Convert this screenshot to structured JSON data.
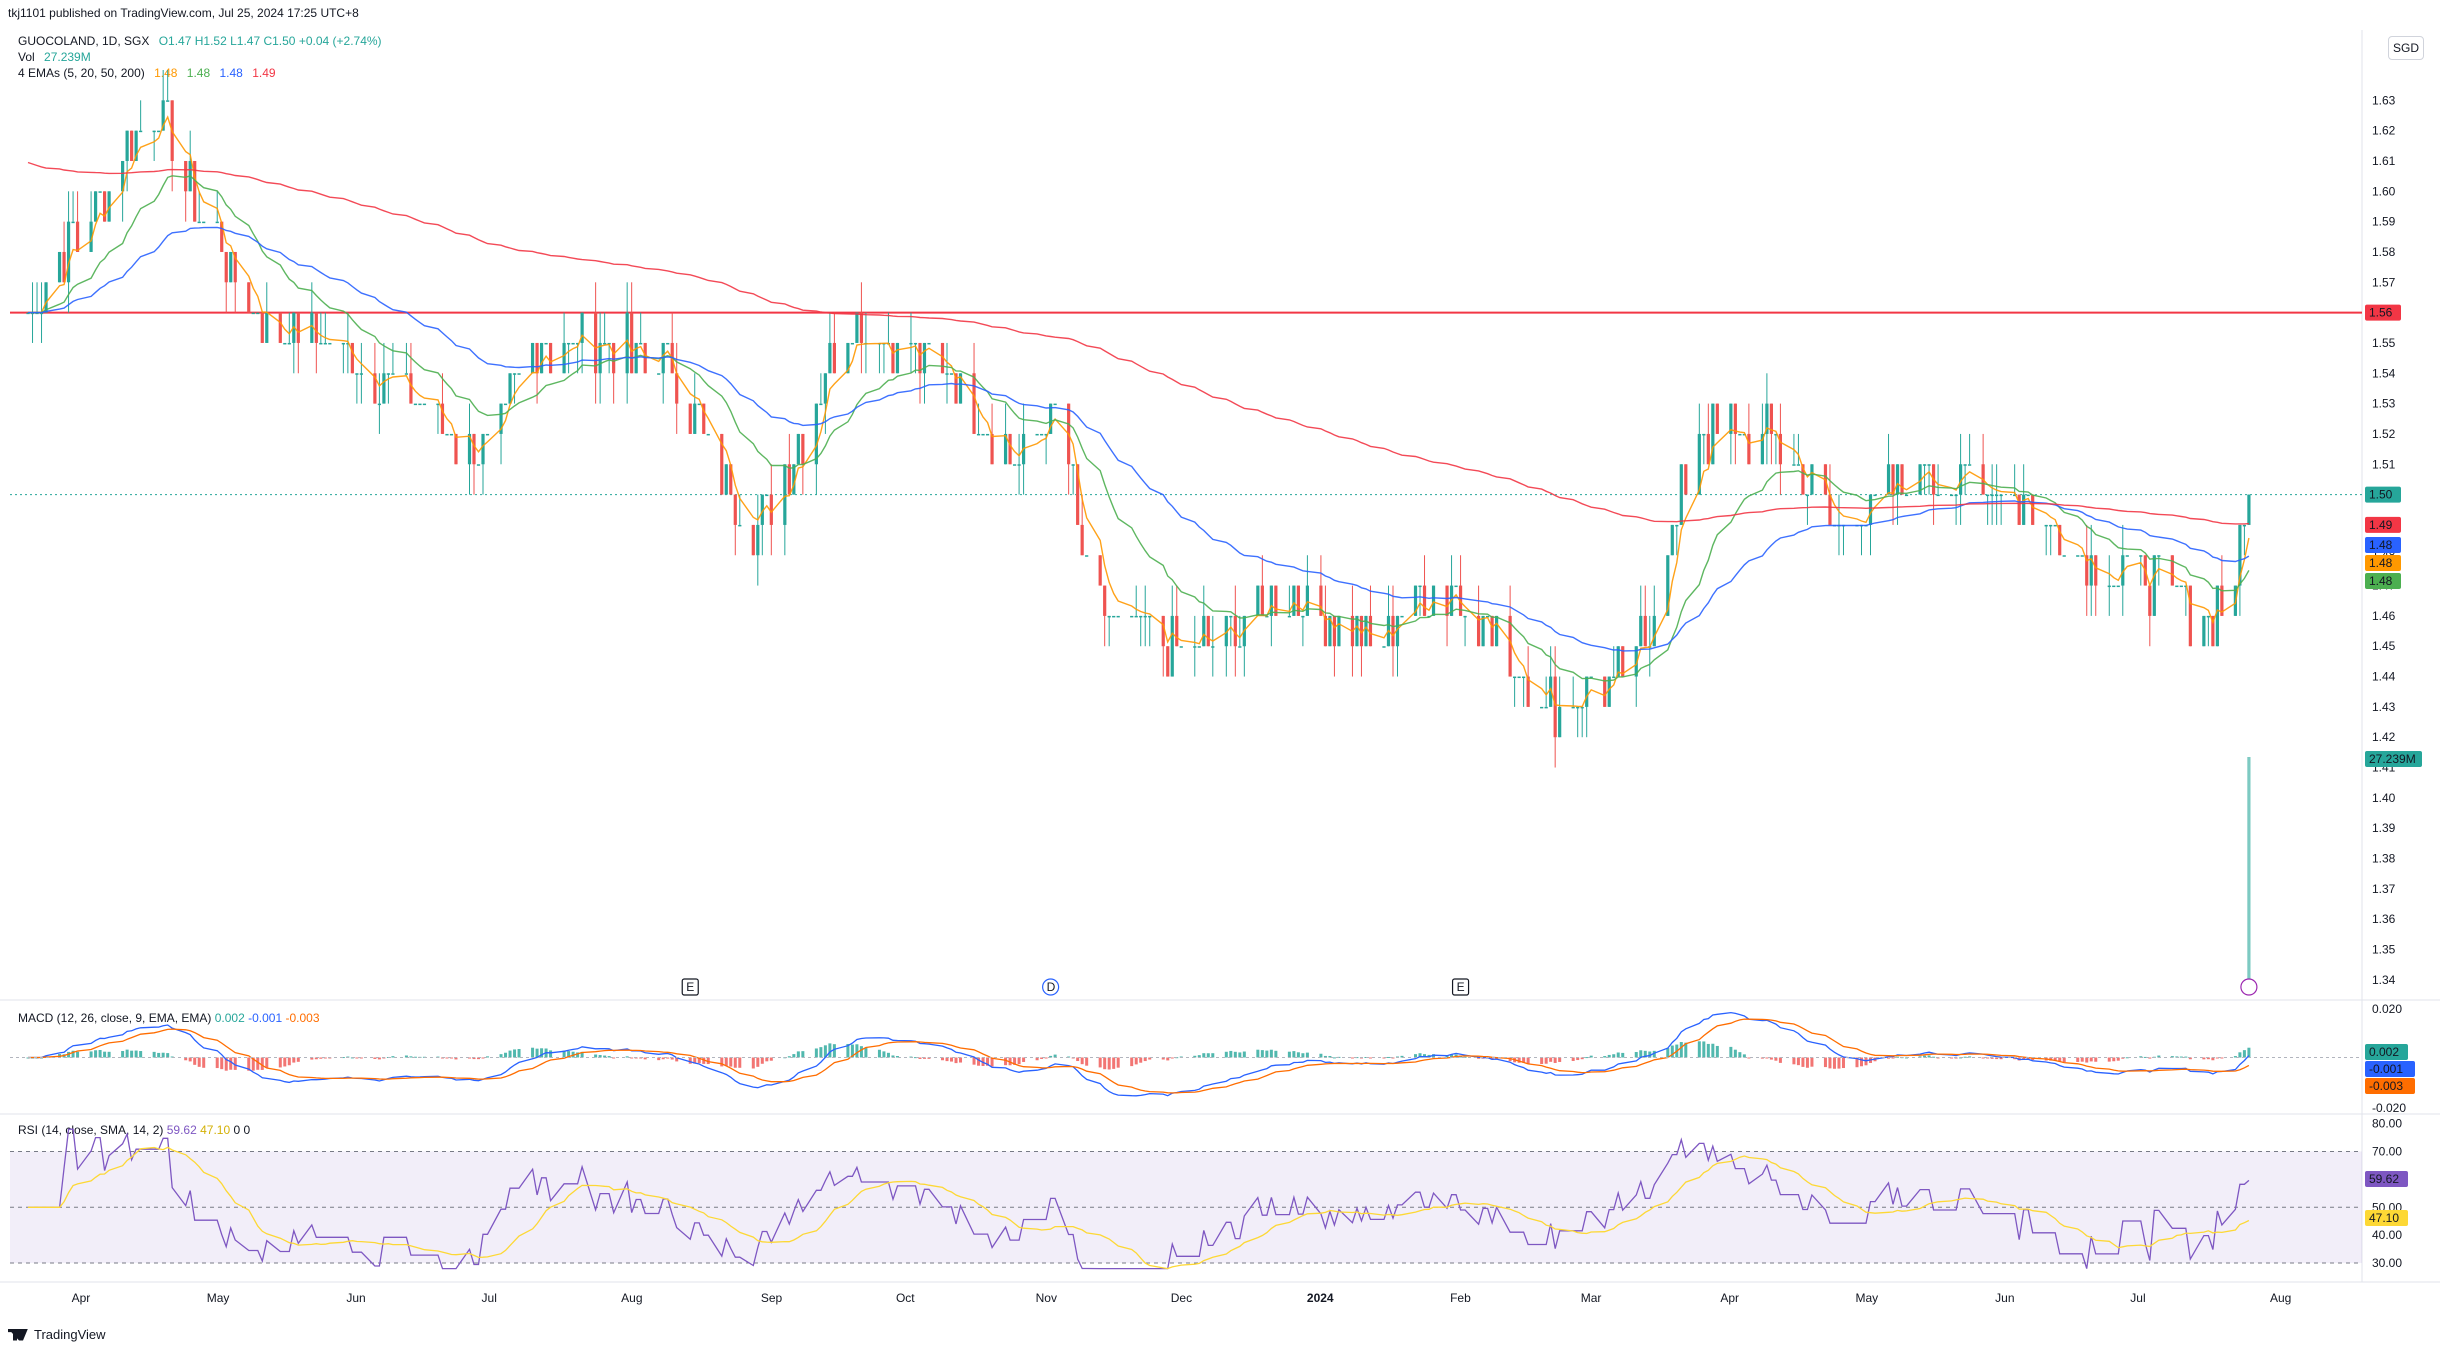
{
  "header": {
    "publisher": "tkj1101 published on TradingView.com, Jul 25, 2024 17:25 UTC+8",
    "symbol": "GUOCOLAND, 1D, SGX",
    "ohlc": "O1.47  H1.52  L1.47  C1.50  +0.04 (+2.74%)",
    "vol_label": "Vol",
    "vol_value": "27.239M",
    "ema_label": "4 EMAs (5, 20, 50, 200)",
    "ema_values": [
      "1.48",
      "1.48",
      "1.48",
      "1.49"
    ]
  },
  "currency": "SGD",
  "colors": {
    "up": "#26a69a",
    "down": "#ef5350",
    "ema5": "#ff9800",
    "ema20": "#4caf50",
    "ema50": "#2962ff",
    "ema200": "#f23645",
    "resistance": "#f23645",
    "macd": "#2962ff",
    "signal": "#ff6d00",
    "rsi": "#7e57c2",
    "rsi_ma": "#fdd835"
  },
  "price_axis": {
    "ticks": [
      "1.63",
      "1.62",
      "1.61",
      "1.60",
      "1.59",
      "1.58",
      "1.57",
      "1.56",
      "1.55",
      "1.54",
      "1.53",
      "1.52",
      "1.51",
      "1.50",
      "1.49",
      "1.48",
      "1.47",
      "1.46",
      "1.45",
      "1.44",
      "1.43",
      "1.42",
      "1.41",
      "1.40",
      "1.39",
      "1.38",
      "1.37",
      "1.36",
      "1.35",
      "1.34"
    ],
    "badges": [
      {
        "text": "1.56",
        "color": "#f23645"
      },
      {
        "text": "1.50",
        "color": "#26a69a"
      },
      {
        "text": "1.49",
        "color": "#f23645"
      },
      {
        "text": "1.48",
        "color": "#2962ff"
      },
      {
        "text": "1.48",
        "color": "#ff9800"
      },
      {
        "text": "1.48",
        "color": "#4caf50"
      },
      {
        "text": "27.239M",
        "color": "#26a69a"
      }
    ]
  },
  "x_axis": [
    "Apr",
    "May",
    "Jun",
    "Jul",
    "Aug",
    "Sep",
    "Oct",
    "Nov",
    "Dec",
    "2024",
    "Feb",
    "Mar",
    "Apr",
    "May",
    "Jun",
    "Jul",
    "Aug"
  ],
  "events": [
    "E",
    "D",
    "E"
  ],
  "macd": {
    "label": "MACD (12, 26, close, 9, EMA, EMA)",
    "values": [
      "0.002",
      "-0.001",
      "-0.003"
    ],
    "ticks": [
      "0.020",
      "-0.020"
    ],
    "badges": [
      {
        "text": "0.002",
        "color": "#26a69a"
      },
      {
        "text": "-0.001",
        "color": "#2962ff"
      },
      {
        "text": "-0.003",
        "color": "#ff6d00"
      }
    ]
  },
  "rsi": {
    "label": "RSI (14, close, SMA, 14, 2)",
    "values": [
      "59.62",
      "47.10",
      "0",
      "0"
    ],
    "ticks": [
      "80.00",
      "70.00",
      "50.00",
      "40.00",
      "30.00"
    ],
    "badges": [
      {
        "text": "59.62",
        "color": "#7e57c2"
      },
      {
        "text": "47.10",
        "color": "#fdd835"
      }
    ]
  },
  "footer": {
    "brand": "TradingView"
  },
  "chart_data": {
    "type": "candlestick",
    "title": "GUOCOLAND, 1D, SGX",
    "ylim": [
      1.335,
      1.64
    ],
    "horizontal_line": 1.56,
    "anchors": [
      {
        "x": "2023-03-20",
        "y": 1.56
      },
      {
        "x": "2023-04-10",
        "y": 1.61
      },
      {
        "x": "2023-04-17",
        "y": 1.63
      },
      {
        "x": "2023-04-28",
        "y": 1.59
      },
      {
        "x": "2023-05-10",
        "y": 1.56
      },
      {
        "x": "2023-05-25",
        "y": 1.55
      },
      {
        "x": "2023-06-15",
        "y": 1.53
      },
      {
        "x": "2023-06-30",
        "y": 1.51
      },
      {
        "x": "2023-07-10",
        "y": 1.55
      },
      {
        "x": "2023-07-25",
        "y": 1.55
      },
      {
        "x": "2023-08-10",
        "y": 1.54
      },
      {
        "x": "2023-08-28",
        "y": 1.49
      },
      {
        "x": "2023-09-08",
        "y": 1.52
      },
      {
        "x": "2023-09-18",
        "y": 1.56
      },
      {
        "x": "2023-10-10",
        "y": 1.54
      },
      {
        "x": "2023-10-25",
        "y": 1.51
      },
      {
        "x": "2023-11-03",
        "y": 1.53
      },
      {
        "x": "2023-11-12",
        "y": 1.46
      },
      {
        "x": "2023-11-28",
        "y": 1.45
      },
      {
        "x": "2023-12-10",
        "y": 1.45
      },
      {
        "x": "2023-12-25",
        "y": 1.47
      },
      {
        "x": "2024-01-10",
        "y": 1.45
      },
      {
        "x": "2024-01-28",
        "y": 1.47
      },
      {
        "x": "2024-02-05",
        "y": 1.46
      },
      {
        "x": "2024-02-20",
        "y": 1.43
      },
      {
        "x": "2024-03-10",
        "y": 1.44
      },
      {
        "x": "2024-03-25",
        "y": 1.52
      },
      {
        "x": "2024-04-10",
        "y": 1.52
      },
      {
        "x": "2024-04-25",
        "y": 1.49
      },
      {
        "x": "2024-05-15",
        "y": 1.51
      },
      {
        "x": "2024-06-03",
        "y": 1.5
      },
      {
        "x": "2024-06-20",
        "y": 1.48
      },
      {
        "x": "2024-07-05",
        "y": 1.47
      },
      {
        "x": "2024-07-15",
        "y": 1.46
      },
      {
        "x": "2024-07-22",
        "y": 1.47
      },
      {
        "x": "2024-07-25",
        "y": 1.5
      }
    ],
    "volume_last": "27.239M",
    "macd_range": [
      -0.025,
      0.025
    ],
    "rsi_range": [
      25,
      82
    ]
  }
}
